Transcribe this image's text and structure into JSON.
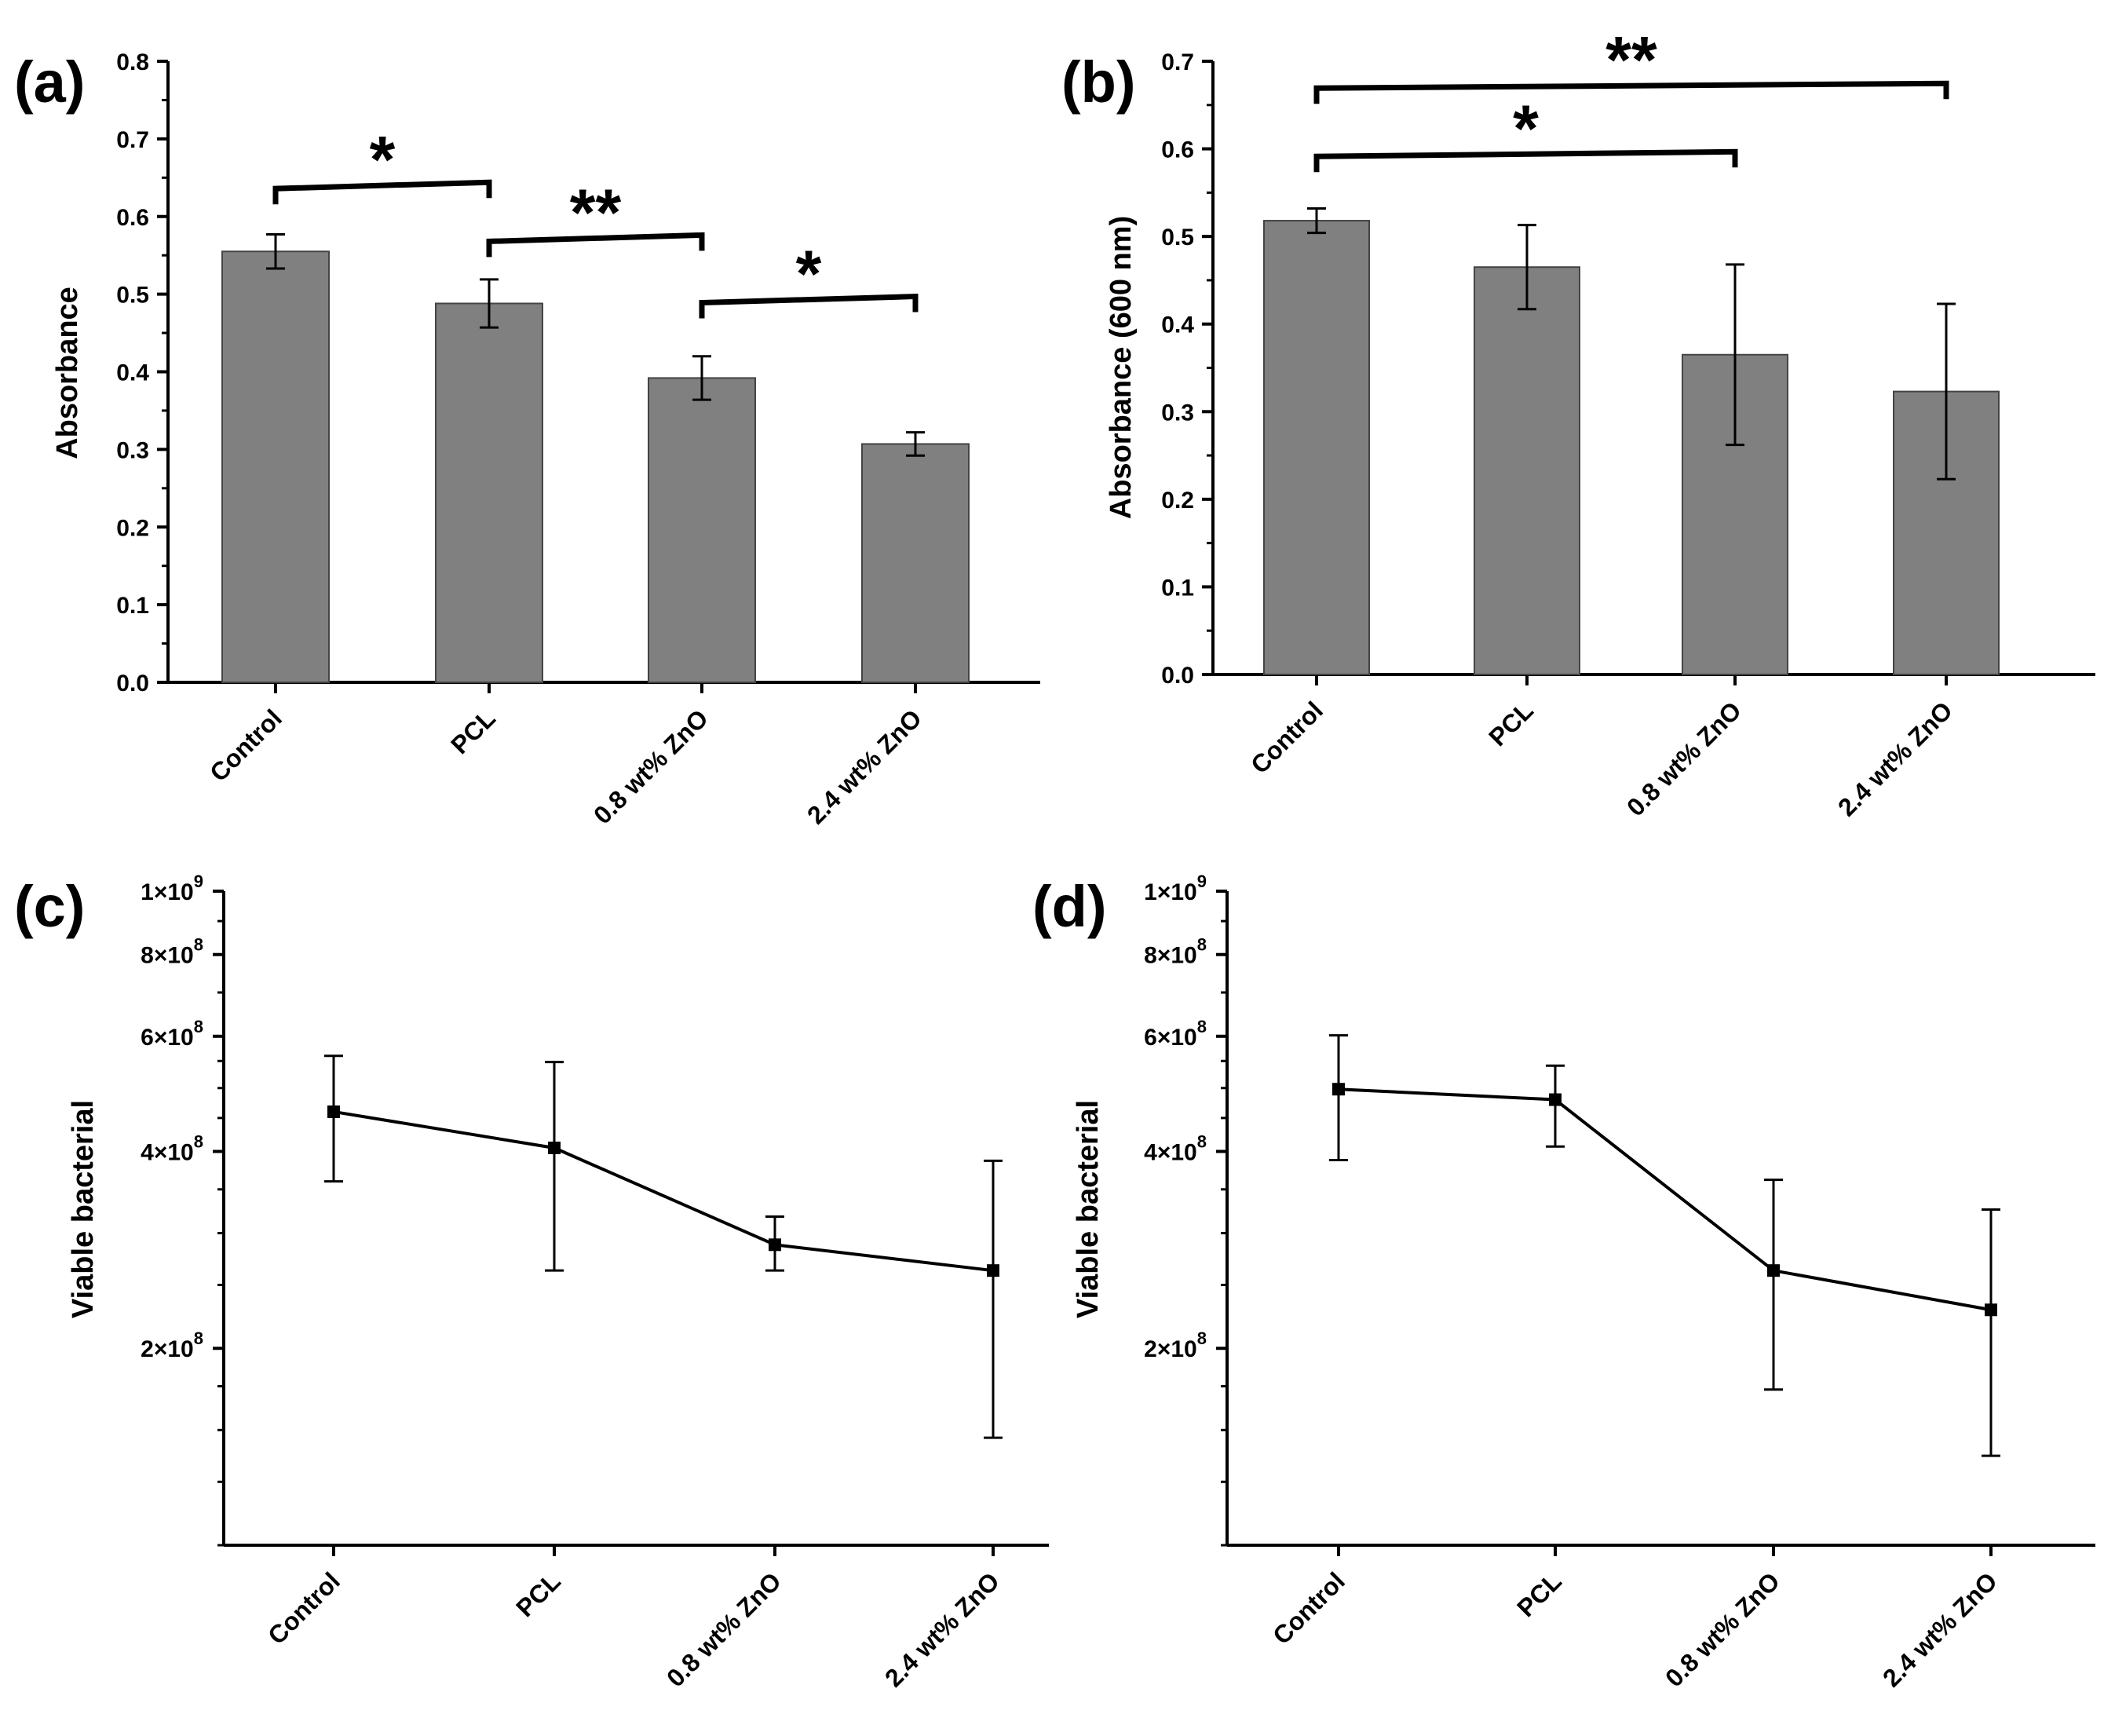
{
  "chart_data": [
    {
      "panel": "(a)",
      "type": "bar",
      "ylabel": "Absorbance",
      "xlabel": "",
      "categories": [
        "Control",
        "PCL",
        "0.8 wt% ZnO",
        "2.4 wt% ZnO"
      ],
      "values": [
        0.555,
        0.488,
        0.392,
        0.307
      ],
      "errors": [
        0.022,
        0.031,
        0.028,
        0.015
      ],
      "ylim": [
        0.0,
        0.8
      ],
      "yticks": [
        0.0,
        0.1,
        0.2,
        0.3,
        0.4,
        0.5,
        0.6,
        0.7,
        0.8
      ],
      "ytick_labels": [
        "0.0",
        "0.1",
        "0.2",
        "0.3",
        "0.4",
        "0.5",
        "0.6",
        "0.7",
        "0.8"
      ],
      "bar_color": "#808080",
      "grid": false,
      "significance": [
        {
          "from": 0,
          "to": 1,
          "level": 0.64,
          "label": "*"
        },
        {
          "from": 1,
          "to": 2,
          "level": 0.572,
          "label": "**"
        },
        {
          "from": 2,
          "to": 3,
          "level": 0.493,
          "label": "*"
        }
      ]
    },
    {
      "panel": "(b)",
      "type": "bar",
      "ylabel": "Absorbance (600 nm)",
      "xlabel": "",
      "categories": [
        "Control",
        "PCL",
        "0.8 wt% ZnO",
        "2.4 wt% ZnO"
      ],
      "values": [
        0.518,
        0.465,
        0.365,
        0.323
      ],
      "errors": [
        0.014,
        0.048,
        0.103,
        0.1
      ],
      "ylim": [
        0.0,
        0.7
      ],
      "yticks": [
        0.0,
        0.1,
        0.2,
        0.3,
        0.4,
        0.5,
        0.6,
        0.7
      ],
      "ytick_labels": [
        "0.0",
        "0.1",
        "0.2",
        "0.3",
        "0.4",
        "0.5",
        "0.6",
        "0.7"
      ],
      "bar_color": "#808080",
      "grid": false,
      "significance": [
        {
          "from": 0,
          "to": 2,
          "level": 0.594,
          "label": "*"
        },
        {
          "from": 0,
          "to": 3,
          "level": 0.672,
          "label": "**"
        }
      ]
    },
    {
      "panel": "(c)",
      "type": "line",
      "scale": "log",
      "ylabel": "Viable bacterial",
      "xlabel": "",
      "categories": [
        "Control",
        "PCL",
        "0.8 wt% ZnO",
        "2.4 wt% ZnO"
      ],
      "values": [
        460000000,
        405000000,
        288000000,
        263000000
      ],
      "err_low": [
        360000000,
        263000000,
        263000000,
        146000000
      ],
      "err_high": [
        560000000,
        548000000,
        318000000,
        387000000
      ],
      "ylim": [
        100000000,
        1000000000
      ],
      "yticks_major": [
        200000000,
        400000000,
        600000000,
        800000000,
        1000000000
      ],
      "ytick_labels": [
        "2×10",
        "4×10",
        "6×10",
        "8×10",
        "1×10"
      ],
      "ytick_exponents": [
        "8",
        "8",
        "8",
        "8",
        "9"
      ],
      "yticks_minor": [
        100000000,
        125000000,
        150000000,
        175000000,
        250000000,
        300000000,
        350000000,
        450000000,
        500000000,
        550000000,
        700000000,
        900000000
      ],
      "grid": false
    },
    {
      "panel": "(d)",
      "type": "line",
      "scale": "log",
      "ylabel": "Viable bacterial",
      "xlabel": "",
      "categories": [
        "Control",
        "PCL",
        "0.8 wt% ZnO",
        "2.4 wt% ZnO"
      ],
      "values": [
        498000000,
        480000000,
        263000000,
        229000000
      ],
      "err_low": [
        388000000,
        407000000,
        173000000,
        137000000
      ],
      "err_high": [
        602000000,
        541000000,
        362000000,
        326000000
      ],
      "ylim": [
        100000000,
        1000000000
      ],
      "yticks_major": [
        200000000,
        400000000,
        600000000,
        800000000,
        1000000000
      ],
      "ytick_labels": [
        "2×10",
        "4×10",
        "6×10",
        "8×10",
        "1×10"
      ],
      "ytick_exponents": [
        "8",
        "8",
        "8",
        "8",
        "9"
      ],
      "yticks_minor": [
        100000000,
        125000000,
        150000000,
        175000000,
        250000000,
        300000000,
        350000000,
        450000000,
        500000000,
        550000000,
        700000000,
        900000000
      ],
      "grid": false
    }
  ]
}
